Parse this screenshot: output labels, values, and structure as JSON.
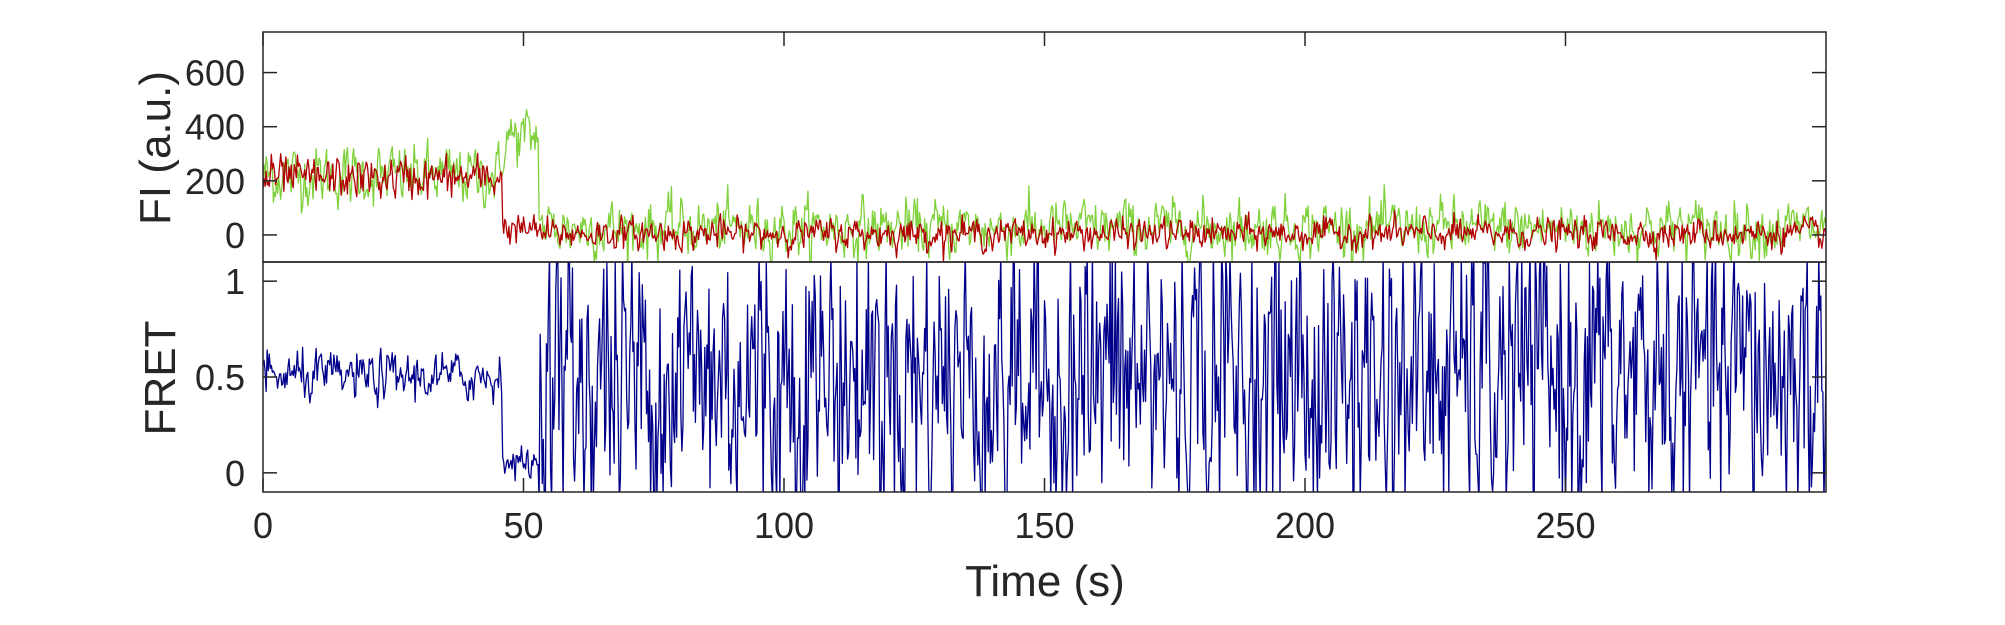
{
  "chart_data": [
    {
      "type": "line",
      "panel": "top",
      "ylabel": "FI (a.u.)",
      "xlabel": "",
      "xlim": [
        0,
        300
      ],
      "ylim": [
        -100,
        750
      ],
      "yticks": [
        0,
        200,
        400,
        600
      ],
      "grid": false,
      "series": [
        {
          "color": "#7fd13b",
          "segments": [
            {
              "x": [
                0,
                46
              ],
              "mean": 220,
              "noise": 80
            },
            {
              "x": [
                46,
                53
              ],
              "mean": 360,
              "noise": 80
            },
            {
              "x": [
                53,
                300
              ],
              "mean": 25,
              "noise": 75
            }
          ]
        },
        {
          "color": "#b00000",
          "segments": [
            {
              "x": [
                0,
                46
              ],
              "mean": 210,
              "noise": 55
            },
            {
              "x": [
                46,
                53
              ],
              "mean": 20,
              "noise": 40
            },
            {
              "x": [
                53,
                300
              ],
              "mean": 5,
              "noise": 40
            }
          ]
        }
      ]
    },
    {
      "type": "line",
      "panel": "bottom",
      "ylabel": "FRET",
      "xlabel": "Time (s)",
      "xlim": [
        0,
        300
      ],
      "ylim": [
        -0.1,
        1.1
      ],
      "yticks": [
        0,
        0.5,
        1
      ],
      "xticks": [
        0,
        50,
        100,
        150,
        200,
        250
      ],
      "grid": false,
      "series": [
        {
          "color": "#00008b",
          "segments": [
            {
              "x": [
                0,
                46
              ],
              "mean": 0.5,
              "noise": 0.09
            },
            {
              "x": [
                46,
                53
              ],
              "mean": 0.05,
              "noise": 0.06
            },
            {
              "x": [
                53,
                300
              ],
              "mean": 0.5,
              "noise": 0.6
            }
          ]
        }
      ]
    }
  ]
}
